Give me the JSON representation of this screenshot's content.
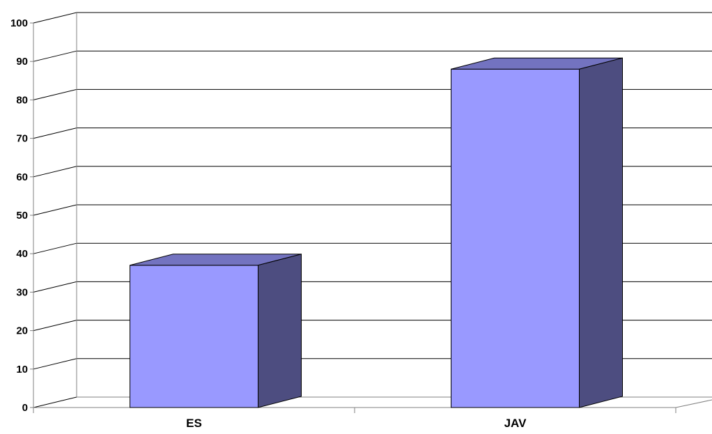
{
  "chart_data": {
    "type": "bar",
    "style": "3d-column",
    "title": "",
    "xlabel": "",
    "ylabel": "",
    "categories": [
      "ES",
      "JAV"
    ],
    "values": [
      37,
      88
    ],
    "ylim": [
      0,
      100
    ],
    "yticks": [
      "0",
      "10",
      "20",
      "30",
      "40",
      "50",
      "60",
      "70",
      "80",
      "90",
      "100"
    ],
    "grid": true,
    "legend": "none",
    "colors": {
      "bar_front": "#9999ff",
      "bar_top": "#7373c0",
      "bar_side": "#4d4d80",
      "gridline": "#000000",
      "axis": "#808080"
    }
  }
}
